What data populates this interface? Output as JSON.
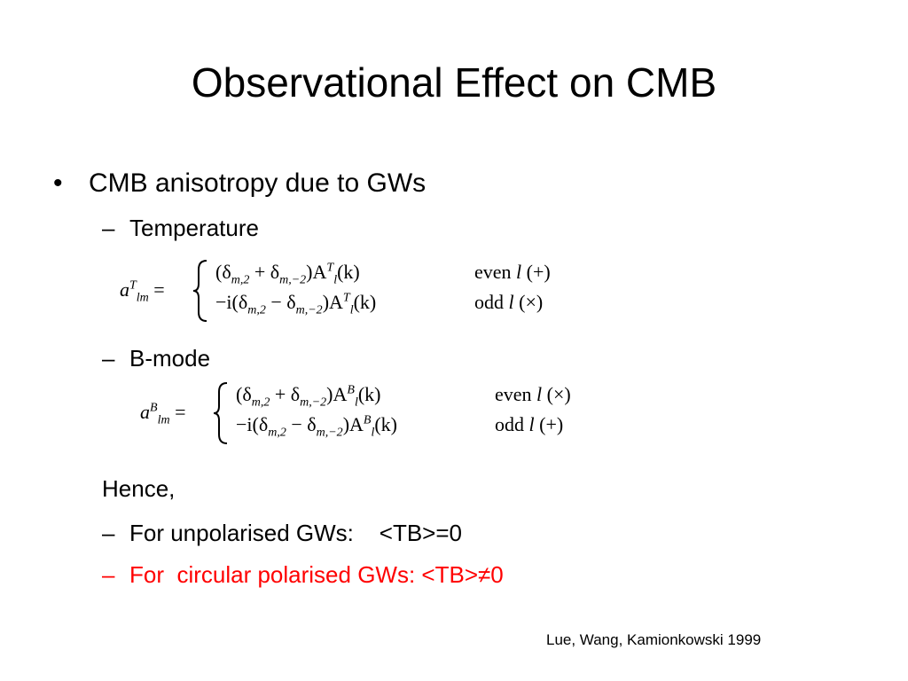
{
  "title": "Observational Effect on CMB",
  "bullet": {
    "marker": "•",
    "text": "CMB anisotropy due to GWs"
  },
  "temperature": {
    "marker": "–",
    "text": "Temperature"
  },
  "equation_t": {
    "lhs": [
      {
        "text": "a"
      },
      {
        "sup": "T"
      },
      {
        "sub": "lm"
      },
      {
        "text": " ="
      }
    ],
    "cases": [
      {
        "expr": [
          {
            "text": "(δ"
          },
          {
            "sub": "m,2"
          },
          {
            "text": " + δ"
          },
          {
            "sub": "m,−2"
          },
          {
            "text": ")A"
          },
          {
            "sup": "T"
          },
          {
            "sub": "l"
          },
          {
            "text": "(k)"
          }
        ],
        "cond": [
          {
            "text": "even "
          },
          {
            "text": "l"
          },
          {
            "text": " (+)"
          }
        ]
      },
      {
        "expr": [
          {
            "text": "−i(δ"
          },
          {
            "sub": "m,2"
          },
          {
            "text": " − δ"
          },
          {
            "sub": "m,−2"
          },
          {
            "text": ")A"
          },
          {
            "sup": "T"
          },
          {
            "sub": "l"
          },
          {
            "text": "(k)"
          }
        ],
        "cond": [
          {
            "text": "odd "
          },
          {
            "text": "l"
          },
          {
            "text": " (×)"
          }
        ]
      }
    ]
  },
  "bmode": {
    "marker": "–",
    "text": "B-mode"
  },
  "equation_b": {
    "lhs": [
      {
        "text": "a"
      },
      {
        "sup": "B"
      },
      {
        "sub": "lm"
      },
      {
        "text": " ="
      }
    ],
    "cases": [
      {
        "expr": [
          {
            "text": "(δ"
          },
          {
            "sub": "m,2"
          },
          {
            "text": " + δ"
          },
          {
            "sub": "m,−2"
          },
          {
            "text": ")A"
          },
          {
            "sup": "B"
          },
          {
            "sub": "l"
          },
          {
            "text": "(k)"
          }
        ],
        "cond": [
          {
            "text": "even "
          },
          {
            "text": "l"
          },
          {
            "text": " (×)"
          }
        ]
      },
      {
        "expr": [
          {
            "text": "−i(δ"
          },
          {
            "sub": "m,2"
          },
          {
            "text": " − δ"
          },
          {
            "sub": "m,−2"
          },
          {
            "text": ")A"
          },
          {
            "sup": "B"
          },
          {
            "sub": "l"
          },
          {
            "text": "(k)"
          }
        ],
        "cond": [
          {
            "text": "odd "
          },
          {
            "text": "l"
          },
          {
            "text": " (+)"
          }
        ]
      }
    ]
  },
  "hence": "Hence,",
  "conclusions": [
    {
      "marker": "–",
      "text": "For unpolarised GWs:    <TB>=0",
      "color": "#000000"
    },
    {
      "marker": "–",
      "text": "For  circular polarised GWs: <TB>≠0",
      "color": "#ff0000"
    }
  ],
  "citation": "Lue, Wang, Kamionkowski 1999"
}
